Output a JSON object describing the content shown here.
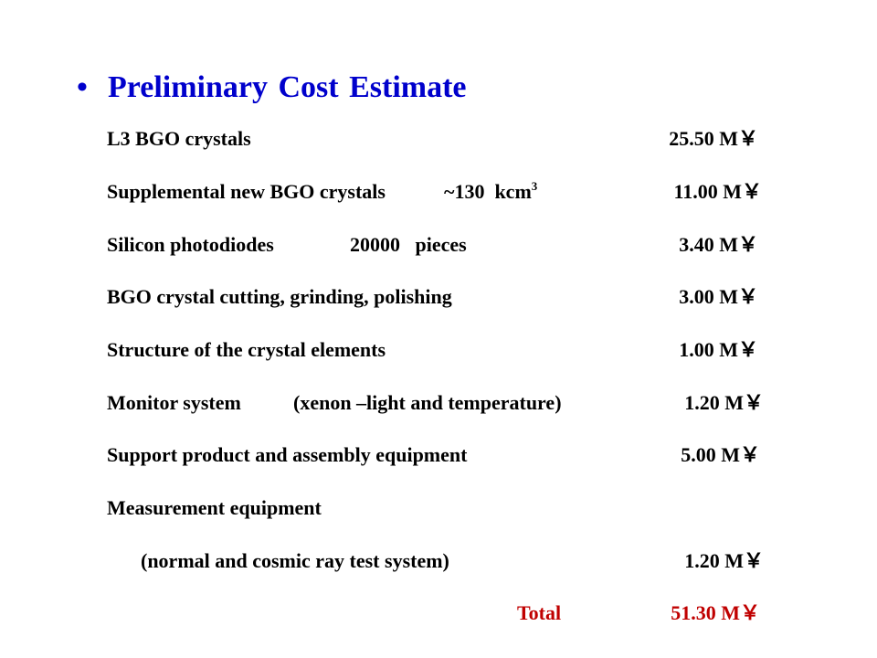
{
  "slide": {
    "title": "Preliminary Cost Estimate",
    "bullet": "•",
    "items": [
      {
        "label": "L3 BGO crystals",
        "note": "",
        "amount": "25.50 M￥"
      },
      {
        "label": "Supplemental new BGO crystals",
        "note": "~130  kcm",
        "note_sup": "3",
        "amount": "11.00 M￥"
      },
      {
        "label": "Silicon photodiodes",
        "note": "20000   pieces",
        "amount": "3.40 M￥"
      },
      {
        "label": "BGO crystal cutting, grinding, polishing",
        "note": "",
        "amount": "3.00 M￥"
      },
      {
        "label": "Structure of the crystal elements",
        "note": "",
        "amount": "1.00 M￥"
      },
      {
        "label": "Monitor system",
        "note": "(xenon –light and temperature)",
        "amount": "1.20 M￥"
      },
      {
        "label": "Support product and assembly equipment",
        "note": "",
        "amount": "5.00 M￥"
      },
      {
        "label": "Measurement equipment",
        "note": "",
        "amount": ""
      },
      {
        "label": "(normal and cosmic ray test system)",
        "note": "",
        "amount": "1.20 M￥"
      }
    ],
    "total": {
      "label": "Total",
      "amount": "51.30 M￥"
    }
  }
}
